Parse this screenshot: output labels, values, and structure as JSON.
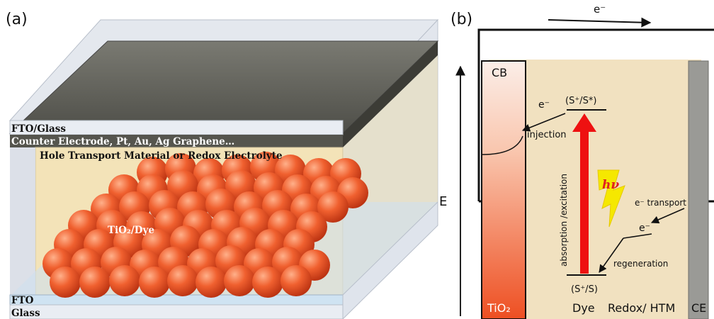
{
  "panel_a": {
    "label": "(a)",
    "layers": {
      "fto_glass_top": "FTO/Glass",
      "counter_electrode": "Counter Electrode, Pt, Au, Ag Graphene…",
      "htm": "Hole Transport Material or Redox Electrolyte",
      "tio2_dye": "TiO₂/Dye",
      "fto_bottom": "FTO",
      "glass_bottom": "Glass"
    },
    "colors": {
      "sphere": "#e8502a",
      "htm": "#f3e3b8",
      "electrode": "#5a5a52"
    }
  },
  "panel_b": {
    "label": "(b)",
    "circuit_electron": "e⁻",
    "energy_axis": "E",
    "side_label": "E",
    "cb_label": "CB",
    "tio2_label": "TiO₂",
    "dye_label": "Dye",
    "redox_label": "Redox/ HTM",
    "ce_label": "CE",
    "excited_level": "(S⁺/S*)",
    "ground_level": "(S⁺/S)",
    "injection_e": "e⁻",
    "injection": "injection",
    "absorption": "absorption /excitation",
    "hv": "hν",
    "transport": "e⁻ transport",
    "regen_e": "e⁻",
    "regeneration": "regeneration",
    "colors": {
      "background": "#f1e1c0",
      "tio2_top": "#fdf0ec",
      "tio2_bottom": "#f0582a",
      "arrow": "#ee1111",
      "hv": "#f5e800",
      "ce": "#9a9a96"
    }
  }
}
